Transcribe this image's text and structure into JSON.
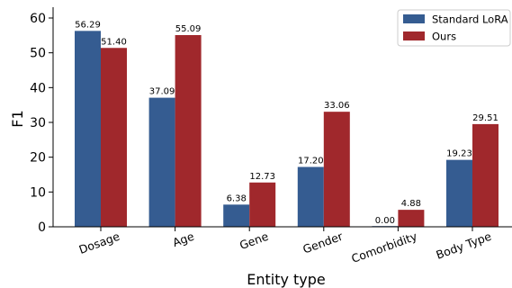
{
  "chart_data": {
    "type": "bar",
    "title": "",
    "xlabel": "Entity type",
    "ylabel": "F1",
    "ylim": [
      0,
      60
    ],
    "yticks": [
      0,
      10,
      20,
      30,
      40,
      50,
      60
    ],
    "categories": [
      "Dosage",
      "Age",
      "Gene",
      "Gender",
      "Comorbidity",
      "Body Type"
    ],
    "series": [
      {
        "name": "Standard LoRA",
        "color": "#355C91",
        "values": [
          56.29,
          37.09,
          6.38,
          17.2,
          0.0,
          19.23
        ],
        "labels": [
          "56.29",
          "37.09",
          "6.38",
          "17.20",
          "0.00",
          "19.23"
        ]
      },
      {
        "name": "Ours",
        "color": "#A0282C",
        "values": [
          51.4,
          55.09,
          12.73,
          33.06,
          4.88,
          29.51
        ],
        "labels": [
          "51.40",
          "55.09",
          "12.73",
          "33.06",
          "4.88",
          "29.51"
        ]
      }
    ],
    "legend_position": "top-right",
    "grid": false
  }
}
